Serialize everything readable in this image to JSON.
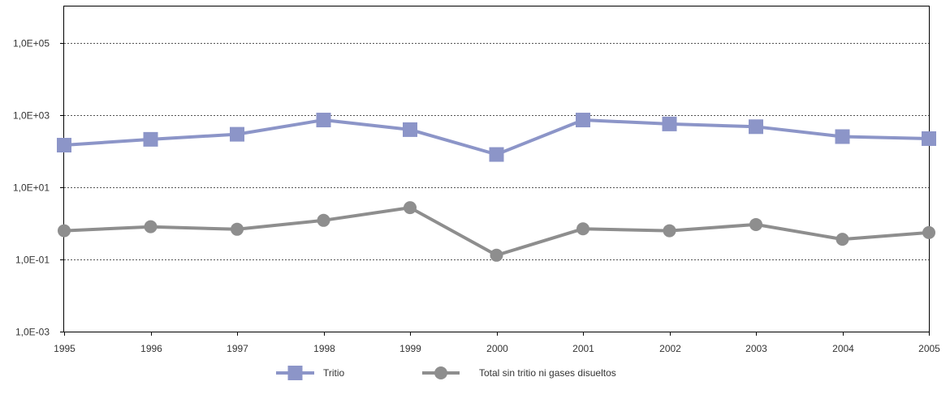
{
  "chart_data": {
    "type": "line",
    "x": [
      "1995",
      "1996",
      "1997",
      "1998",
      "1999",
      "2000",
      "2001",
      "2002",
      "2003",
      "2004",
      "2005"
    ],
    "y_scale": "log",
    "ylim": [
      0.001,
      1000000
    ],
    "y_ticks": [
      0.001,
      0.1,
      10,
      1000,
      100000
    ],
    "y_tick_labels": [
      "1,0E-03",
      "1,0E-01",
      "1,0E+01",
      "1,0E+03",
      "1,0E+05"
    ],
    "grid": "horizontal dotted",
    "legend_position": "bottom",
    "series": [
      {
        "name": "Tritio",
        "marker": "square",
        "color": "#8c95c8",
        "values": [
          145,
          210,
          290,
          720,
          390,
          80,
          720,
          560,
          470,
          250,
          220
        ]
      },
      {
        "name": "Total sin tritio ni gases disueltos",
        "marker": "circle",
        "color": "#8e8e8e",
        "values": [
          0.62,
          0.8,
          0.68,
          1.2,
          2.7,
          0.13,
          0.7,
          0.62,
          0.92,
          0.36,
          0.55
        ]
      }
    ]
  }
}
